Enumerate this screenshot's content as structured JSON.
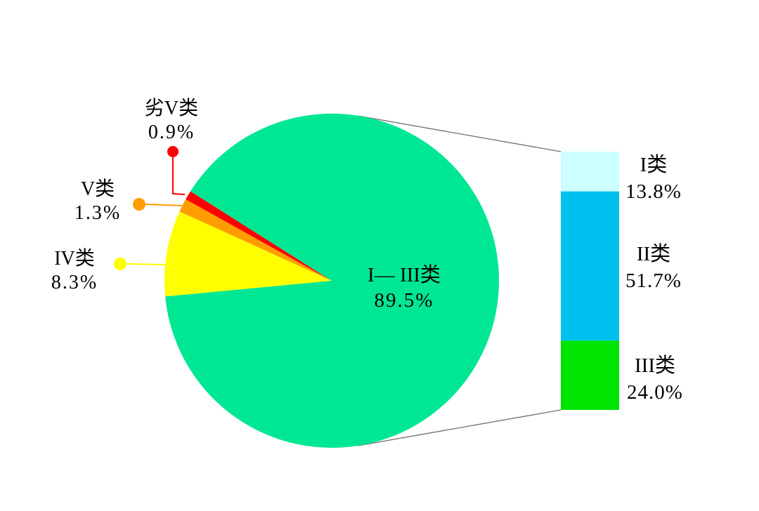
{
  "chart_data": {
    "type": "pie",
    "title": "",
    "background_color": "#FFFFFF",
    "connector_color": "#6E6E6E",
    "text_color": "#000000",
    "legend_position": "none",
    "pie": {
      "slices": [
        {
          "id": "i_iii",
          "label": "I— III类",
          "value": 89.5,
          "display": "89.5%",
          "color": "#00E794"
        },
        {
          "id": "iv",
          "label": "IV类",
          "value": 8.3,
          "display": "8.3%",
          "color": "#FFFF00"
        },
        {
          "id": "v",
          "label": "V类",
          "value": 1.3,
          "display": "1.3%",
          "color": "#FF9C00"
        },
        {
          "id": "worse_v",
          "label": "劣V类",
          "value": 0.9,
          "display": "0.9%",
          "color": "#FF0000"
        }
      ]
    },
    "bar_breakdown": {
      "description": "I— III类 89.5% split",
      "segments": [
        {
          "id": "i",
          "label": "I类",
          "value": 13.8,
          "display": "13.8%",
          "color": "#CCFFFF"
        },
        {
          "id": "ii",
          "label": "II类",
          "value": 51.7,
          "display": "51.7%",
          "color": "#00C0F0"
        },
        {
          "id": "iii",
          "label": "III类",
          "value": 24.0,
          "display": "24.0%",
          "color": "#00E400"
        }
      ]
    }
  }
}
